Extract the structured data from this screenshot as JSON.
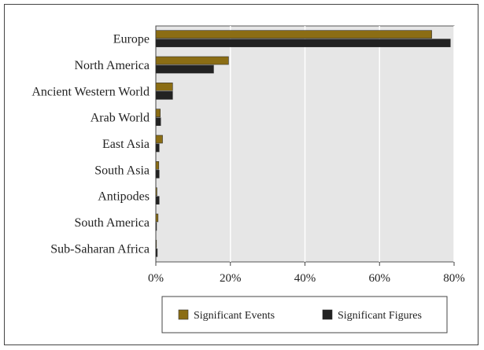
{
  "chart_data": {
    "type": "bar",
    "orientation": "horizontal",
    "categories": [
      "Europe",
      "North America",
      "Ancient Western World",
      "Arab World",
      "East Asia",
      "South Asia",
      "Antipodes",
      "South America",
      "Sub-Saharan Africa"
    ],
    "series": [
      {
        "name": "Significant Events",
        "color": "#8B6D14",
        "values": [
          74,
          19.5,
          4.5,
          1.2,
          1.8,
          0.8,
          0.3,
          0.6,
          0.1
        ]
      },
      {
        "name": "Significant Figures",
        "color": "#222222",
        "values": [
          79,
          15.5,
          4.5,
          1.3,
          0.9,
          0.9,
          0.9,
          0.2,
          0.4
        ]
      }
    ],
    "xlim": [
      0,
      80
    ],
    "xticks": [
      0,
      20,
      40,
      60,
      80
    ],
    "xtick_labels": [
      "0%",
      "20%",
      "40%",
      "60%",
      "80%"
    ],
    "grid": "vertical",
    "plot_background": "#e6e6e6",
    "legend_position": "bottom"
  }
}
